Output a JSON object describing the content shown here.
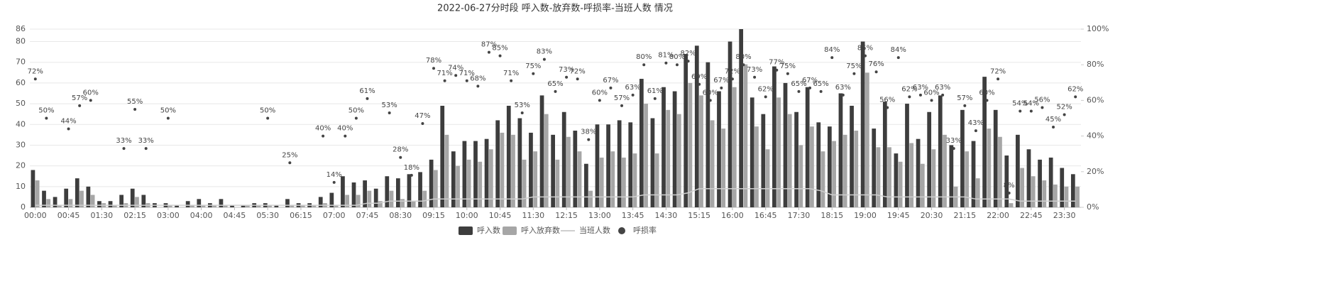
{
  "chart_data": {
    "type": "bar",
    "title": "2022-06-27分时段 呼入数-放弃数-呼损率-当班人数 情况",
    "categories": [
      "00:00",
      null,
      null,
      "00:45",
      null,
      null,
      "01:30",
      null,
      null,
      "02:15",
      null,
      null,
      "03:00",
      null,
      null,
      "04:00",
      null,
      null,
      "04:45",
      null,
      null,
      "05:30",
      null,
      null,
      "06:15",
      null,
      null,
      "07:00",
      null,
      null,
      "07:45",
      null,
      null,
      "08:30",
      null,
      null,
      "09:15",
      null,
      null,
      "10:00",
      null,
      null,
      "10:45",
      null,
      null,
      "11:30",
      null,
      null,
      "12:15",
      null,
      null,
      "13:00",
      null,
      null,
      "13:45",
      null,
      null,
      "14:30",
      null,
      null,
      "15:15",
      null,
      null,
      "16:00",
      null,
      null,
      "16:45",
      null,
      null,
      "17:30",
      null,
      null,
      "18:15",
      null,
      null,
      "19:00",
      null,
      null,
      "19:45",
      null,
      null,
      "20:30",
      null,
      null,
      "21:15",
      null,
      null,
      "22:00",
      null,
      null,
      "22:45",
      null,
      null,
      "23:30",
      null
    ],
    "series": [
      {
        "name": "呼入数",
        "type": "bar",
        "color": "#3d3d3d",
        "values": [
          18,
          8,
          5,
          9,
          14,
          10,
          3,
          3,
          6,
          9,
          6,
          2,
          2,
          1,
          3,
          4,
          2,
          4,
          1,
          1,
          2,
          2,
          1,
          4,
          2,
          2,
          5,
          7,
          15,
          12,
          13,
          9,
          15,
          14,
          16,
          17,
          23,
          49,
          27,
          32,
          32,
          33,
          42,
          49,
          43,
          36,
          54,
          35,
          46,
          37,
          21,
          40,
          40,
          42,
          41,
          62,
          43,
          58,
          56,
          74,
          78,
          70,
          56,
          80,
          86,
          53,
          45,
          68,
          60,
          46,
          58,
          41,
          39,
          55,
          49,
          80,
          38,
          51,
          26,
          50,
          33,
          46,
          54,
          30,
          47,
          32,
          63,
          47,
          25,
          35,
          28,
          23,
          24,
          19,
          16
        ]
      },
      {
        "name": "呼入放弃数",
        "type": "bar",
        "color": "#a6a6a6",
        "values": [
          13,
          4,
          1,
          4,
          8,
          6,
          2,
          1,
          2,
          5,
          2,
          0,
          1,
          0,
          1,
          1,
          1,
          1,
          0,
          1,
          1,
          1,
          0,
          1,
          1,
          1,
          2,
          1,
          6,
          6,
          8,
          3,
          8,
          4,
          3,
          8,
          18,
          35,
          20,
          23,
          22,
          28,
          36,
          35,
          23,
          27,
          45,
          23,
          34,
          27,
          8,
          24,
          27,
          24,
          26,
          50,
          26,
          47,
          45,
          60,
          54,
          42,
          38,
          58,
          69,
          39,
          28,
          53,
          45,
          30,
          39,
          27,
          32,
          35,
          37,
          65,
          29,
          29,
          22,
          31,
          21,
          28,
          35,
          10,
          27,
          14,
          38,
          34,
          2,
          19,
          15,
          13,
          11,
          10,
          10
        ]
      },
      {
        "name": "当班人数",
        "type": "line",
        "color": "#cfcfcf",
        "values": [
          1,
          1,
          1,
          1,
          1,
          1,
          1,
          1,
          1,
          1,
          1,
          1,
          1,
          1,
          1,
          1,
          1,
          1,
          1,
          1,
          1,
          1,
          1,
          1,
          1,
          1,
          1,
          1,
          1,
          1,
          2,
          2,
          3,
          3,
          3,
          3,
          4,
          4,
          4,
          4,
          4,
          4,
          4,
          4,
          4,
          5,
          5,
          5,
          5,
          5,
          5,
          5,
          5,
          5,
          5,
          6,
          6,
          6,
          6,
          7,
          9,
          9,
          9,
          9,
          9,
          9,
          9,
          9,
          9,
          9,
          9,
          8,
          6,
          6,
          6,
          6,
          6,
          5,
          5,
          5,
          5,
          5,
          5,
          5,
          5,
          4,
          4,
          4,
          4,
          3,
          3,
          3,
          3,
          3,
          3
        ]
      },
      {
        "name": "呼损率",
        "type": "scatter",
        "axis": "y2",
        "color": "#444444",
        "values": [
          72,
          50,
          null,
          44,
          57,
          60,
          null,
          null,
          33,
          55,
          33,
          null,
          50,
          null,
          null,
          null,
          null,
          null,
          null,
          null,
          null,
          50,
          null,
          25,
          null,
          null,
          40,
          14,
          40,
          50,
          61,
          null,
          53,
          28,
          18,
          47,
          78,
          71,
          74,
          71,
          68,
          87,
          85,
          71,
          53,
          75,
          83,
          65,
          73,
          72,
          38,
          60,
          67,
          57,
          63,
          80,
          61,
          81,
          80,
          82,
          69,
          60,
          67,
          72,
          80,
          73,
          62,
          77,
          75,
          65,
          67,
          65,
          84,
          63,
          75,
          85,
          76,
          56,
          84,
          62,
          63,
          60,
          63,
          33,
          57,
          43,
          60,
          72,
          8,
          54,
          54,
          56,
          45,
          52,
          62
        ],
        "value_labels": [
          "72%",
          "50%",
          null,
          "44%",
          "57%",
          "60%",
          null,
          null,
          "33%",
          "55%",
          "33%",
          null,
          "50%",
          null,
          null,
          null,
          null,
          null,
          null,
          null,
          null,
          "50%",
          null,
          "25%",
          null,
          null,
          "40%",
          "14%",
          "40%",
          "50%",
          "61%",
          null,
          "53%",
          "28%",
          "18%",
          "47%",
          "78%",
          "71%",
          "74%",
          "71%",
          "68%",
          "87%",
          "85%",
          "71%",
          "53%",
          "75%",
          "83%",
          "65%",
          "73%",
          "72%",
          "38%",
          "60%",
          "67%",
          "57%",
          "63%",
          "80%",
          "61%",
          "81%",
          "80%",
          "82%",
          "69%",
          "60%",
          "67%",
          "72%",
          "80%",
          "73%",
          "62%",
          "77%",
          "75%",
          "65%",
          "67%",
          "65%",
          "84%",
          "63%",
          "75%",
          "85%",
          "76%",
          "56%",
          "84%",
          "62%",
          "63%",
          "60%",
          "63%",
          "33%",
          "57%",
          "43%",
          "60%",
          "72%",
          "8%",
          "54%",
          "54%",
          "56%",
          "45%",
          "52%",
          "62%"
        ]
      }
    ],
    "ylim": [
      0,
      86
    ],
    "yticks": [
      0,
      10,
      20,
      30,
      40,
      50,
      60,
      70,
      80,
      86
    ],
    "y2lim": [
      0,
      100
    ],
    "y2ticks": [
      {
        "value": 0,
        "label": "0%"
      },
      {
        "value": 20,
        "label": "20%"
      },
      {
        "value": 40,
        "label": "40%"
      },
      {
        "value": 60,
        "label": "60%"
      },
      {
        "value": 80,
        "label": "80%"
      },
      {
        "value": 100,
        "label": "100%"
      }
    ],
    "grid": true,
    "legend": "bottom"
  }
}
